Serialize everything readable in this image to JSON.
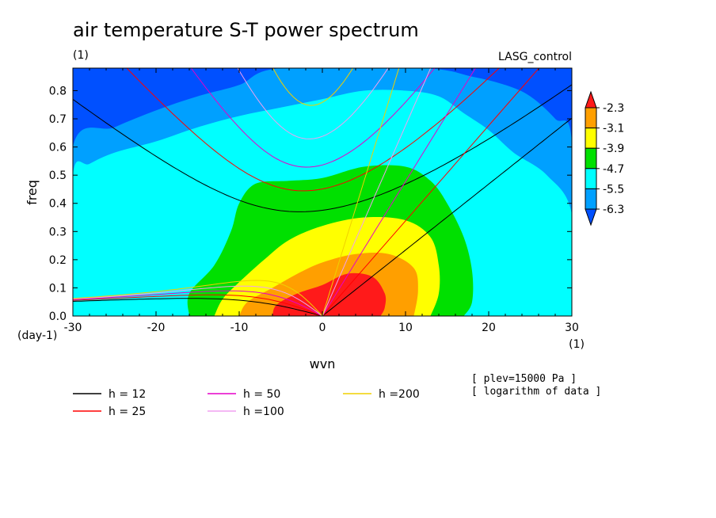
{
  "title": "air temperature S-T power spectrum",
  "subtitle_left": "(1)",
  "subtitle_right": "LASG_control",
  "chart_data": {
    "type": "contour",
    "xlabel": "wvn",
    "ylabel": "freq",
    "x_unit": "(1)",
    "y_unit": "(day-1)",
    "xlim": [
      -30,
      30
    ],
    "ylim": [
      0,
      0.88
    ],
    "x_ticks": [
      -30,
      -20,
      -10,
      0,
      10,
      20,
      30
    ],
    "y_ticks": [
      0.0,
      0.1,
      0.2,
      0.3,
      0.4,
      0.5,
      0.6,
      0.7,
      0.8
    ],
    "colorbar": {
      "levels": [
        -2.3,
        -3.1,
        -3.9,
        -4.7,
        -5.5,
        -6.3
      ],
      "colors": [
        "#ff1a1a",
        "#ff9f00",
        "#ffff00",
        "#00e000",
        "#00ffff",
        "#00a0ff",
        "#0050ff"
      ]
    },
    "contour_regions": [
      {
        "level_index": 5,
        "color": "#00a0ff",
        "points": [
          [
            -30,
            0
          ],
          [
            -30,
            0.6
          ],
          [
            -25,
            0.67
          ],
          [
            -20,
            0.73
          ],
          [
            -15,
            0.78
          ],
          [
            -10,
            0.82
          ],
          [
            -5,
            0.88
          ],
          [
            12,
            0.88
          ],
          [
            18,
            0.85
          ],
          [
            22,
            0.82
          ],
          [
            25,
            0.78
          ],
          [
            28,
            0.7
          ],
          [
            30,
            0.62
          ],
          [
            30,
            0
          ]
        ]
      },
      {
        "level_index": 4,
        "color": "#00ffff",
        "points": [
          [
            -30,
            0
          ],
          [
            -30,
            0.5
          ],
          [
            -28,
            0.54
          ],
          [
            -25,
            0.58
          ],
          [
            -20,
            0.62
          ],
          [
            -15,
            0.67
          ],
          [
            -10,
            0.71
          ],
          [
            -5,
            0.74
          ],
          [
            0,
            0.77
          ],
          [
            5,
            0.8
          ],
          [
            10,
            0.8
          ],
          [
            14,
            0.78
          ],
          [
            17,
            0.72
          ],
          [
            20,
            0.66
          ],
          [
            23,
            0.58
          ],
          [
            27,
            0.5
          ],
          [
            30,
            0.36
          ],
          [
            30,
            0
          ]
        ]
      },
      {
        "level_index": 3,
        "color": "#00e000",
        "points": [
          [
            -16,
            0
          ],
          [
            -16,
            0.08
          ],
          [
            -13,
            0.18
          ],
          [
            -11,
            0.3
          ],
          [
            -10,
            0.4
          ],
          [
            -8,
            0.47
          ],
          [
            -4,
            0.48
          ],
          [
            0,
            0.49
          ],
          [
            5,
            0.53
          ],
          [
            10,
            0.53
          ],
          [
            13,
            0.48
          ],
          [
            15,
            0.4
          ],
          [
            17,
            0.28
          ],
          [
            18,
            0.16
          ],
          [
            18,
            0.05
          ],
          [
            17,
            0
          ]
        ]
      },
      {
        "level_index": 2,
        "color": "#ffff00",
        "points": [
          [
            -13,
            0
          ],
          [
            -12,
            0.06
          ],
          [
            -10,
            0.12
          ],
          [
            -7,
            0.2
          ],
          [
            -4,
            0.27
          ],
          [
            0,
            0.32
          ],
          [
            5,
            0.35
          ],
          [
            10,
            0.34
          ],
          [
            13,
            0.28
          ],
          [
            14,
            0.18
          ],
          [
            14,
            0.08
          ],
          [
            13,
            0
          ]
        ]
      },
      {
        "level_index": 1,
        "color": "#ff9f00",
        "points": [
          [
            -10,
            0
          ],
          [
            -9,
            0.05
          ],
          [
            -6,
            0.1
          ],
          [
            -3,
            0.15
          ],
          [
            0,
            0.19
          ],
          [
            4,
            0.22
          ],
          [
            8,
            0.22
          ],
          [
            11,
            0.17
          ],
          [
            11.5,
            0.09
          ],
          [
            11,
            0
          ]
        ]
      },
      {
        "level_index": 0,
        "color": "#ff1a1a",
        "points": [
          [
            -6,
            0
          ],
          [
            -5.5,
            0.04
          ],
          [
            -3,
            0.08
          ],
          [
            0,
            0.11
          ],
          [
            3,
            0.15
          ],
          [
            6,
            0.14
          ],
          [
            7.5,
            0.08
          ],
          [
            7.5,
            0.03
          ],
          [
            7,
            0
          ]
        ]
      }
    ],
    "dispersion_curves": [
      {
        "label": "h = 12",
        "color": "#000000",
        "equivalent_depth": 12
      },
      {
        "label": "h = 25",
        "color": "#ff0000",
        "equivalent_depth": 25
      },
      {
        "label": "h = 50",
        "color": "#e600c8",
        "equivalent_depth": 50
      },
      {
        "label": "h =100",
        "color": "#f0a0f0",
        "equivalent_depth": 100
      },
      {
        "label": "h =200",
        "color": "#f0d000",
        "equivalent_depth": 200
      }
    ],
    "notes": [
      "[ plev=15000 Pa ]",
      "[ logarithm of data ]"
    ]
  }
}
